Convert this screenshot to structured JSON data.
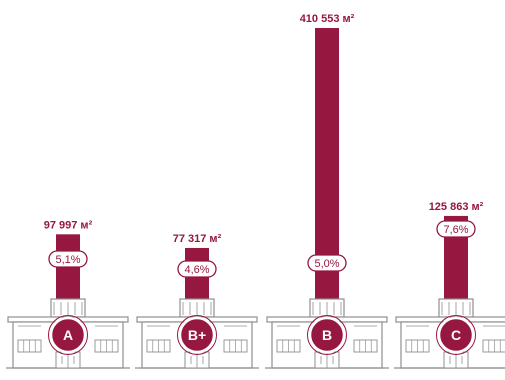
{
  "chart_data": {
    "type": "bar",
    "categories": [
      "A",
      "B+",
      "B",
      "C"
    ],
    "values": [
      97997,
      77317,
      410553,
      125863
    ],
    "value_labels": [
      "97 997 м²",
      "77 317 м²",
      "410 553 м²",
      "125 863 м²"
    ],
    "percent_labels": [
      "5,1%",
      "4,6%",
      "5,0%",
      "7,6%"
    ],
    "ylim": [
      0,
      410553
    ],
    "grid": false,
    "legend": "none",
    "title": "",
    "xlabel": "",
    "ylabel": ""
  },
  "colors": {
    "bar": "#96173f",
    "outline": "#8f8f8f",
    "background": "#ffffff"
  },
  "icons": [
    "building-icon"
  ]
}
